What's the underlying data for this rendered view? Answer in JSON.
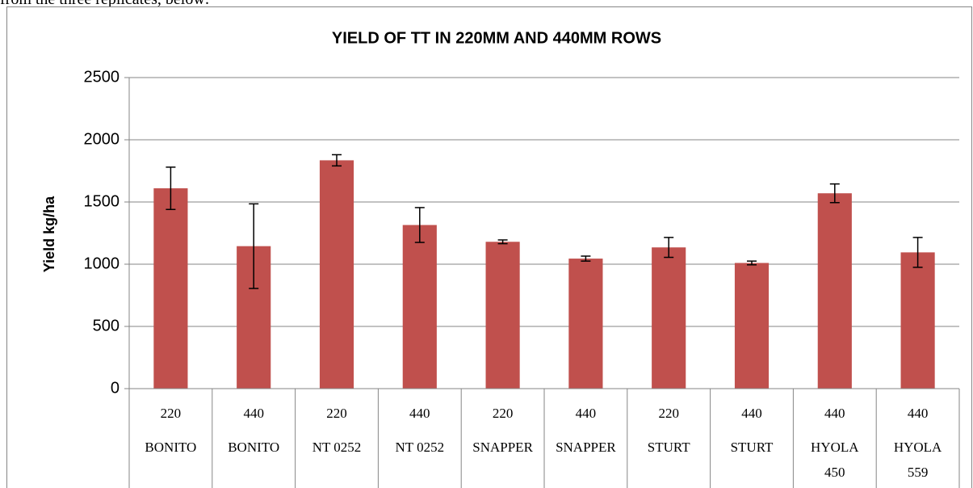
{
  "intro_text": "from the three replicates, below:",
  "chart_data": {
    "type": "bar",
    "title": "YIELD OF TT IN 220MM AND 440MM ROWS",
    "y_label": "Yield kg/ha",
    "categories": [
      "220",
      "440",
      "220",
      "440",
      "220",
      "440",
      "220",
      "440",
      "440",
      "440"
    ],
    "category_groups": [
      "BONITO",
      "BONITO",
      "NT 0252",
      "NT 0252",
      "SNAPPER",
      "SNAPPER",
      "STURT",
      "STURT",
      "HYOLA 450",
      "HYOLA 559"
    ],
    "values": [
      1610,
      1145,
      1835,
      1315,
      1180,
      1045,
      1135,
      1010,
      1570,
      1095
    ],
    "errors": [
      170,
      340,
      45,
      140,
      15,
      20,
      80,
      15,
      75,
      120
    ],
    "color": "#c0504d",
    "ylim": [
      0,
      2500
    ],
    "yticks": [
      0,
      500,
      1000,
      1500,
      2000,
      2500
    ],
    "grid": true
  }
}
